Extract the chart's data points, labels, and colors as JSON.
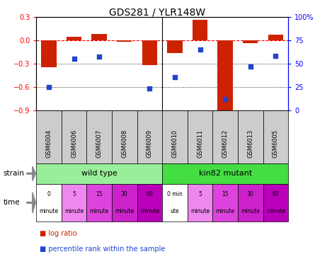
{
  "title": "GDS281 / YLR148W",
  "samples": [
    "GSM6004",
    "GSM6006",
    "GSM6007",
    "GSM6008",
    "GSM6009",
    "GSM6010",
    "GSM6011",
    "GSM6012",
    "GSM6013",
    "GSM6005"
  ],
  "log_ratio": [
    -0.35,
    0.04,
    0.08,
    -0.02,
    -0.32,
    -0.17,
    0.26,
    -0.92,
    -0.04,
    0.07
  ],
  "percentile": [
    25,
    55,
    57,
    null,
    23,
    35,
    65,
    12,
    47,
    58
  ],
  "ylim_left": [
    -0.9,
    0.3
  ],
  "ylim_right": [
    0,
    100
  ],
  "left_ticks": [
    0.3,
    0.0,
    -0.3,
    -0.6,
    -0.9
  ],
  "right_ticks": [
    100,
    75,
    50,
    25,
    0
  ],
  "bar_color": "#cc2200",
  "dot_color": "#2244cc",
  "background_color": "#ffffff",
  "strain_wild": "wild type",
  "strain_mutant": "kin82 mutant",
  "wild_color": "#99ee99",
  "mutant_color": "#44dd44",
  "sample_box_color": "#cccccc",
  "time_labels": [
    "0\nminute",
    "5\nminute",
    "15\nminute",
    "30\nminute",
    "60\nminute",
    "0 min\nute",
    "5\nminute",
    "15\nminute",
    "30\nminute",
    "60\nminute"
  ],
  "time_colors": [
    "#ffffff",
    "#ee88ee",
    "#dd44dd",
    "#cc22cc",
    "#bb00bb",
    "#ffffff",
    "#ee88ee",
    "#dd44dd",
    "#cc22cc",
    "#bb00bb"
  ],
  "legend_bar_label": "log ratio",
  "legend_dot_label": "percentile rank within the sample",
  "n_samples": 10,
  "n_wild": 5,
  "figwidth": 4.45,
  "figheight": 3.66,
  "dpi": 100
}
